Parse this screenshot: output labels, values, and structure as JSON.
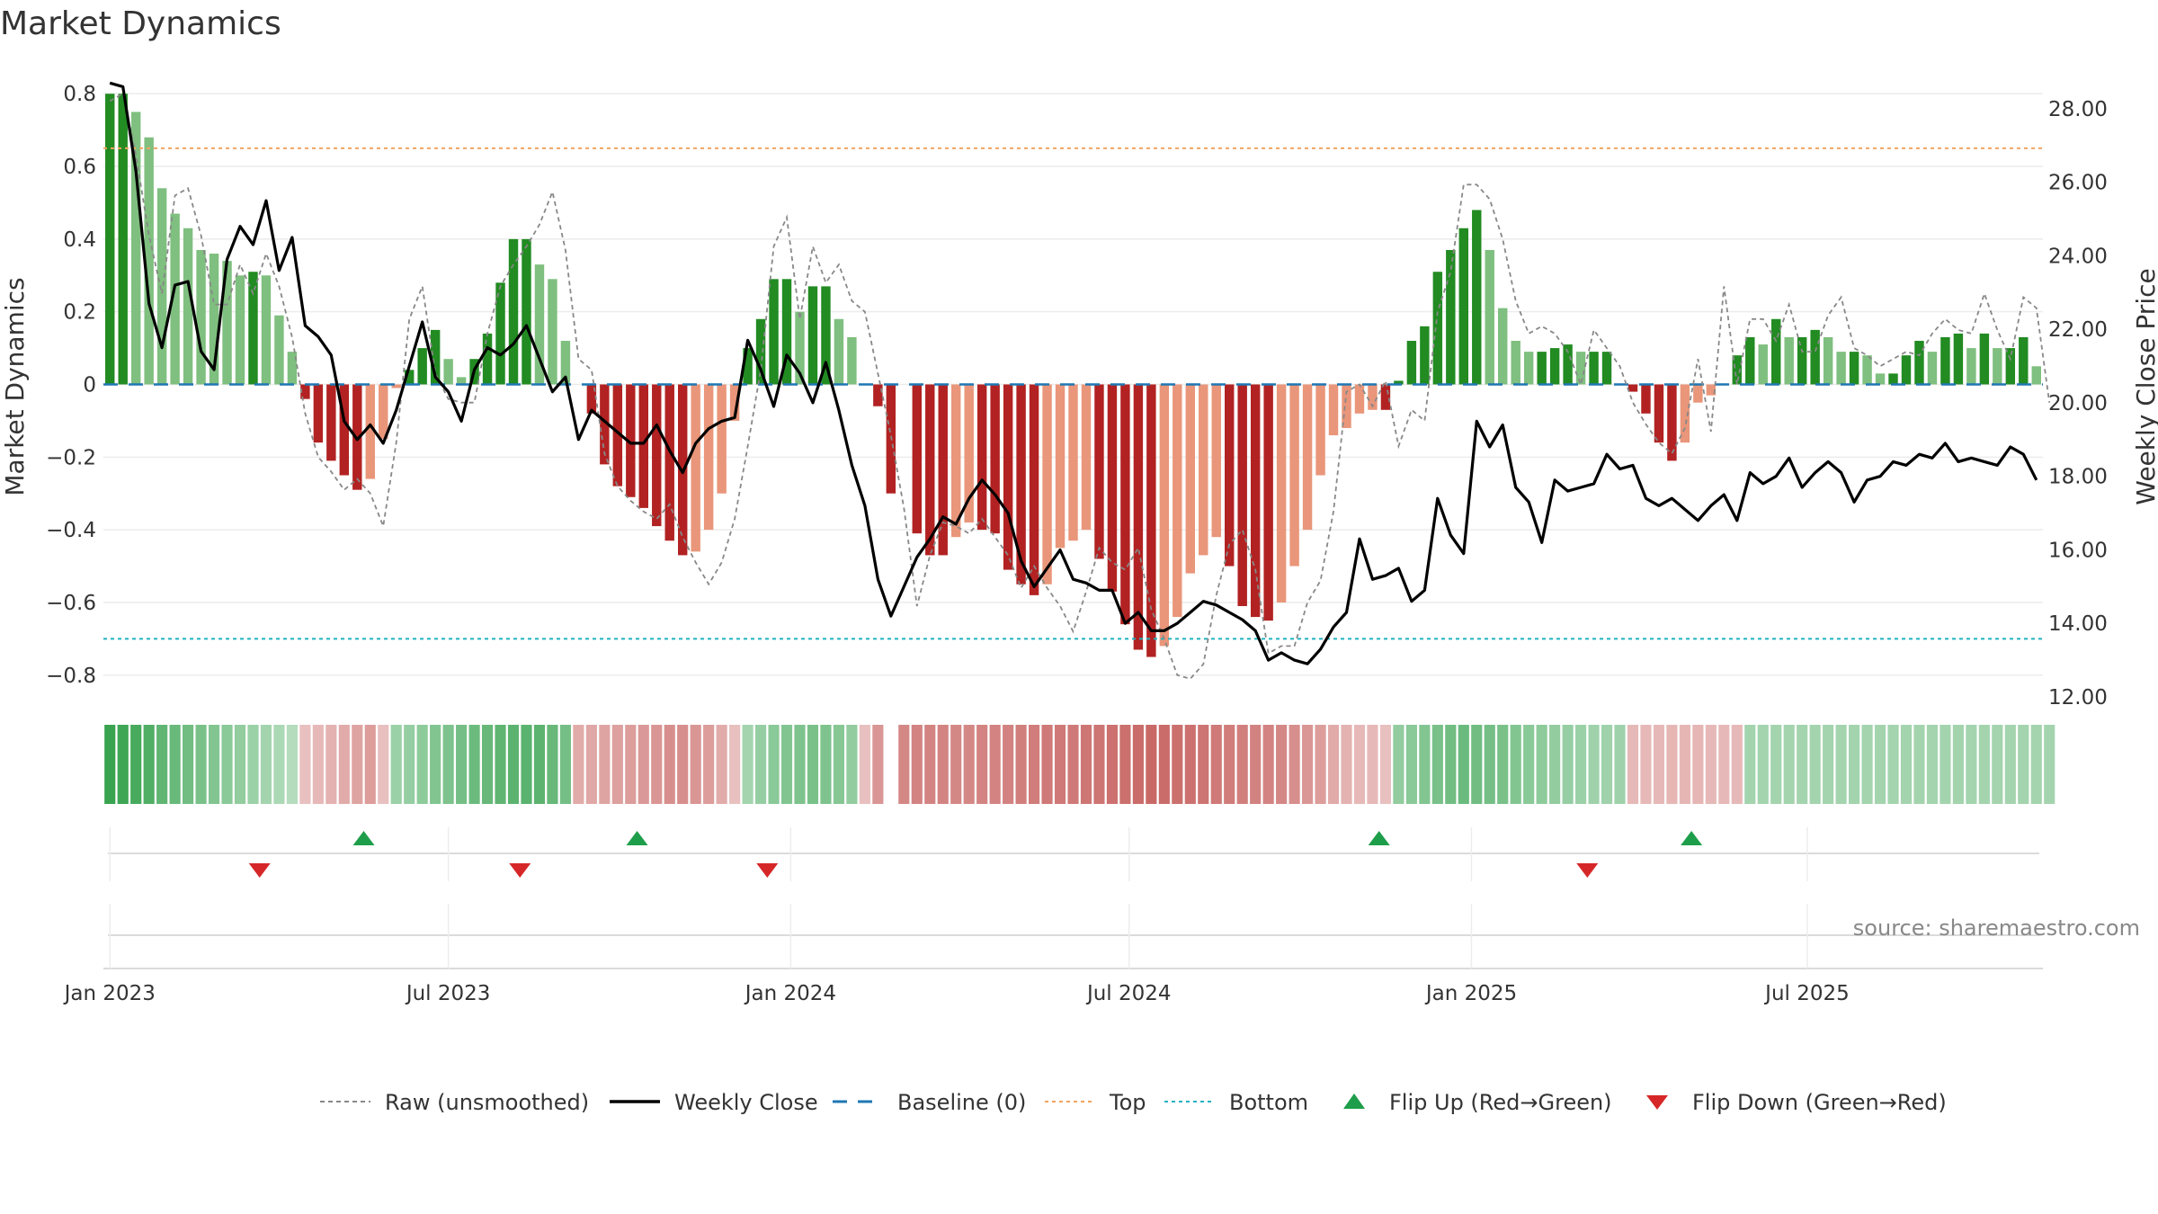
{
  "chart_data": {
    "type": "bar",
    "title": "Market Dynamics",
    "ylabel_left": "Market Dynamics",
    "ylabel_right": "Weekly Close Price",
    "ylim_left": [
      -0.86,
      0.86
    ],
    "ylim_right": [
      12.0,
      29.0
    ],
    "yticks_left": [
      0.8,
      0.6,
      0.4,
      0.2,
      0,
      -0.2,
      -0.4,
      -0.6,
      -0.8
    ],
    "yticks_left_labels": [
      "0.8",
      "0.6",
      "0.4",
      "0.2",
      "0",
      "−0.2",
      "−0.4",
      "−0.6",
      "−0.8"
    ],
    "yticks_right": [
      28,
      26,
      24,
      22,
      20,
      18,
      16,
      14,
      12
    ],
    "yticks_right_labels": [
      "28.00",
      "26.00",
      "24.00",
      "22.00",
      "20.00",
      "18.00",
      "16.00",
      "14.00",
      "12.00"
    ],
    "x_start": "2023-01-01",
    "x_end": "2025-09-28",
    "xticks": [
      {
        "label": "Jan 2023",
        "week": 0
      },
      {
        "label": "Jul 2023",
        "week": 26
      },
      {
        "label": "Jan 2024",
        "week": 52.3
      },
      {
        "label": "Jul 2024",
        "week": 78.3
      },
      {
        "label": "Jan 2025",
        "week": 104.6
      },
      {
        "label": "Jul 2025",
        "week": 130.4
      }
    ],
    "top_level": 0.65,
    "bottom_level": -0.7,
    "baseline": 0,
    "momentum": [
      0.8,
      0.8,
      0.75,
      0.68,
      0.54,
      0.47,
      0.43,
      0.37,
      0.36,
      0.34,
      0.3,
      0.31,
      0.3,
      0.19,
      0.09,
      -0.04,
      -0.16,
      -0.21,
      -0.25,
      -0.29,
      -0.26,
      -0.15,
      -0.01,
      0.04,
      0.1,
      0.15,
      0.07,
      0.02,
      0.07,
      0.14,
      0.28,
      0.4,
      0.4,
      0.33,
      0.29,
      0.12,
      null,
      -0.08,
      -0.22,
      -0.28,
      -0.31,
      -0.34,
      -0.39,
      -0.43,
      -0.47,
      -0.46,
      -0.4,
      -0.3,
      -0.1,
      0.1,
      0.18,
      0.29,
      0.29,
      0.2,
      0.27,
      0.27,
      0.18,
      0.13,
      null,
      -0.06,
      -0.3,
      null,
      -0.41,
      -0.47,
      -0.47,
      -0.42,
      -0.38,
      -0.4,
      -0.41,
      -0.51,
      -0.55,
      -0.58,
      -0.55,
      -0.45,
      -0.43,
      -0.4,
      -0.48,
      -0.57,
      -0.66,
      -0.73,
      -0.75,
      -0.72,
      -0.64,
      -0.52,
      -0.47,
      -0.42,
      -0.5,
      -0.61,
      -0.64,
      -0.65,
      -0.6,
      -0.5,
      -0.4,
      -0.25,
      -0.14,
      -0.12,
      -0.08,
      -0.07,
      -0.07,
      0.01,
      0.12,
      0.16,
      0.31,
      0.37,
      0.43,
      0.48,
      0.37,
      0.21,
      0.12,
      0.09,
      0.09,
      0.1,
      0.11,
      0.09,
      0.09,
      0.09,
      null,
      -0.02,
      -0.08,
      -0.16,
      -0.21,
      -0.16,
      -0.05,
      -0.03,
      null,
      0.08,
      0.13,
      0.11,
      0.18,
      0.13,
      0.13,
      0.15,
      0.13,
      0.09,
      0.09,
      0.08,
      0.03,
      0.03,
      0.08,
      0.12,
      0.09,
      0.13,
      0.14,
      0.1,
      0.14,
      0.1,
      0.1,
      0.13,
      0.05
    ],
    "raw": [
      0.78,
      0.8,
      0.63,
      0.41,
      0.25,
      0.52,
      0.54,
      0.41,
      0.22,
      0.22,
      0.33,
      0.25,
      0.36,
      0.27,
      0.13,
      -0.08,
      -0.2,
      -0.24,
      -0.29,
      -0.26,
      -0.3,
      -0.39,
      -0.16,
      0.18,
      0.27,
      0.03,
      -0.04,
      -0.05,
      -0.05,
      0.14,
      0.27,
      0.33,
      0.38,
      0.44,
      0.53,
      0.37,
      0.07,
      0.04,
      -0.19,
      -0.28,
      -0.32,
      -0.35,
      -0.37,
      -0.33,
      -0.42,
      -0.49,
      -0.55,
      -0.49,
      -0.37,
      -0.17,
      0.04,
      0.38,
      0.46,
      0.18,
      0.38,
      0.28,
      0.33,
      0.23,
      0.2,
      0.03,
      -0.14,
      -0.34,
      -0.61,
      -0.47,
      -0.38,
      -0.39,
      -0.41,
      -0.37,
      -0.42,
      -0.47,
      -0.56,
      -0.5,
      -0.56,
      -0.61,
      -0.68,
      -0.57,
      -0.45,
      -0.49,
      -0.51,
      -0.45,
      -0.62,
      -0.7,
      -0.8,
      -0.81,
      -0.77,
      -0.58,
      -0.44,
      -0.4,
      -0.51,
      -0.74,
      -0.72,
      -0.72,
      -0.6,
      -0.54,
      -0.35,
      -0.02,
      0.0,
      -0.06,
      0.01,
      -0.17,
      -0.07,
      -0.1,
      0.2,
      0.31,
      0.55,
      0.55,
      0.51,
      0.4,
      0.23,
      0.14,
      0.16,
      0.14,
      0.09,
      0.0,
      0.15,
      0.1,
      0.05,
      -0.05,
      -0.11,
      -0.16,
      -0.19,
      -0.12,
      0.07,
      -0.13,
      0.27,
      0.0,
      0.18,
      0.18,
      0.12,
      0.22,
      0.09,
      0.09,
      0.19,
      0.24,
      0.1,
      0.08,
      0.05,
      0.07,
      0.09,
      0.08,
      0.14,
      0.18,
      0.15,
      0.14,
      0.25,
      0.15,
      0.07,
      0.24,
      0.21,
      -0.05
    ],
    "weekly_close": [
      28.7,
      28.6,
      26.3,
      22.7,
      21.5,
      23.2,
      23.3,
      21.4,
      20.9,
      23.9,
      24.8,
      24.3,
      25.5,
      23.6,
      24.5,
      22.1,
      21.8,
      21.3,
      19.5,
      19.0,
      19.4,
      18.9,
      19.8,
      21.0,
      22.2,
      20.7,
      20.3,
      19.5,
      20.9,
      21.5,
      21.3,
      21.6,
      22.1,
      21.2,
      20.3,
      20.7,
      19.0,
      19.8,
      19.5,
      19.2,
      18.9,
      18.9,
      19.4,
      18.7,
      18.1,
      18.9,
      19.3,
      19.5,
      19.6,
      21.7,
      20.9,
      19.9,
      21.3,
      20.8,
      20.0,
      21.1,
      19.8,
      18.3,
      17.2,
      15.2,
      14.2,
      15.0,
      15.8,
      16.3,
      16.9,
      16.7,
      17.4,
      17.9,
      17.5,
      17.0,
      15.7,
      15.0,
      15.5,
      16.0,
      15.2,
      15.1,
      14.9,
      14.9,
      14.0,
      14.3,
      13.8,
      13.8,
      14.0,
      14.3,
      14.6,
      14.5,
      14.3,
      14.1,
      13.8,
      13.0,
      13.2,
      13.0,
      12.9,
      13.3,
      13.9,
      14.3,
      16.3,
      15.2,
      15.3,
      15.5,
      14.6,
      14.9,
      17.4,
      16.4,
      15.9,
      19.5,
      18.8,
      19.4,
      17.7,
      17.3,
      16.2,
      17.9,
      17.6,
      17.7,
      17.8,
      18.6,
      18.2,
      18.3,
      17.4,
      17.2,
      17.4,
      17.1,
      16.8,
      17.2,
      17.5,
      16.8,
      18.1,
      17.8,
      18.0,
      18.5,
      17.7,
      18.1,
      18.4,
      18.1,
      17.3,
      17.9,
      18.0,
      18.4,
      18.3,
      18.6,
      18.5,
      18.9,
      18.4,
      18.5,
      18.4,
      18.3,
      18.8,
      18.6,
      17.9
    ],
    "regime": [
      0.95,
      0.9,
      0.85,
      0.8,
      0.7,
      0.65,
      0.6,
      0.55,
      0.5,
      0.45,
      0.4,
      0.35,
      0.3,
      0.25,
      0.2,
      -0.2,
      -0.25,
      -0.3,
      -0.35,
      -0.4,
      -0.45,
      -0.2,
      0.35,
      0.38,
      0.42,
      0.5,
      0.52,
      0.58,
      0.62,
      0.66,
      0.7,
      0.72,
      0.74,
      0.72,
      0.66,
      0.58,
      -0.35,
      -0.38,
      -0.4,
      -0.42,
      -0.45,
      -0.48,
      -0.5,
      -0.55,
      -0.55,
      -0.5,
      -0.45,
      -0.35,
      -0.2,
      0.3,
      0.38,
      0.45,
      0.5,
      0.52,
      0.55,
      0.52,
      0.48,
      0.4,
      -0.2,
      -0.5,
      null,
      -0.6,
      -0.62,
      -0.62,
      -0.62,
      -0.6,
      -0.6,
      -0.62,
      -0.62,
      -0.64,
      -0.66,
      -0.68,
      -0.7,
      -0.7,
      -0.7,
      -0.72,
      -0.74,
      -0.76,
      -0.78,
      -0.8,
      -0.82,
      -0.8,
      -0.78,
      -0.76,
      -0.74,
      -0.7,
      -0.68,
      -0.66,
      -0.64,
      -0.62,
      -0.6,
      -0.55,
      -0.5,
      -0.45,
      -0.35,
      -0.3,
      -0.25,
      -0.25,
      -0.2,
      0.4,
      0.45,
      0.5,
      0.55,
      0.6,
      0.62,
      0.6,
      0.58,
      0.55,
      0.5,
      0.45,
      0.42,
      0.4,
      0.38,
      0.35,
      0.33,
      0.33,
      0.33,
      -0.25,
      -0.25,
      -0.25,
      -0.27,
      -0.27,
      -0.27,
      -0.25,
      -0.25,
      -0.25,
      0.3,
      0.3,
      0.3,
      0.3,
      0.3,
      0.3,
      0.3,
      0.3,
      0.3,
      0.3,
      0.3,
      0.3,
      0.3,
      0.3,
      0.3,
      0.3,
      0.3,
      0.3,
      0.3,
      0.3,
      0.3,
      0.3,
      0.3,
      0.3
    ],
    "flips_up_weeks": [
      19.5,
      40.5,
      97.5,
      121.5
    ],
    "flips_down_weeks": [
      11.5,
      31.5,
      50.5,
      113.5
    ],
    "legend": [
      {
        "key": "raw",
        "label": "Raw (unsmoothed)"
      },
      {
        "key": "close",
        "label": "Weekly Close"
      },
      {
        "key": "baseline",
        "label": "Baseline (0)"
      },
      {
        "key": "top",
        "label": "Top"
      },
      {
        "key": "bottom",
        "label": "Bottom"
      },
      {
        "key": "flip_up",
        "label": "Flip Up (Red→Green)"
      },
      {
        "key": "flip_down",
        "label": "Flip Down (Green→Red)"
      }
    ],
    "colors": {
      "green_strong": "#228b22",
      "green_weak": "#7fbf7f",
      "red_strong": "#b22222",
      "red_weak": "#e9967a",
      "raw_line": "#888888",
      "close_line": "#000000",
      "baseline": "#1f77b4",
      "top": "#f4a460",
      "bottom": "#20b2c0",
      "flip_up": "#1e9e4a",
      "flip_down": "#d62728",
      "regime_green": "#2e9e47",
      "regime_red": "#c0504d"
    }
  },
  "source_text": "source: sharemaestro.com"
}
